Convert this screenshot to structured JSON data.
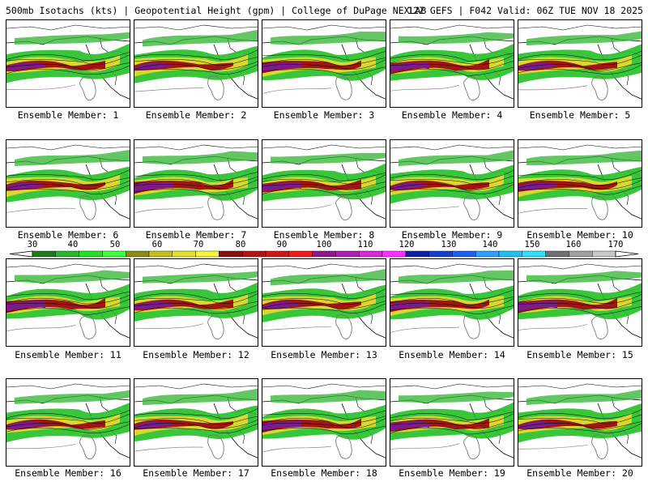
{
  "header": {
    "left": "500mb Isotachs (kts) | Geopotential Height (gpm) | College of DuPage NEXLAB",
    "right": "12Z GEFS | F042 Valid: 06Z TUE NOV 18 2025"
  },
  "panels": [
    {
      "label": "Ensemble Member: 1"
    },
    {
      "label": "Ensemble Member: 2"
    },
    {
      "label": "Ensemble Member: 3"
    },
    {
      "label": "Ensemble Member: 4"
    },
    {
      "label": "Ensemble Member: 5"
    },
    {
      "label": "Ensemble Member: 6"
    },
    {
      "label": "Ensemble Member: 7"
    },
    {
      "label": "Ensemble Member: 8"
    },
    {
      "label": "Ensemble Member: 9"
    },
    {
      "label": "Ensemble Member: 10"
    },
    {
      "label": "Ensemble Member: 11"
    },
    {
      "label": "Ensemble Member: 12"
    },
    {
      "label": "Ensemble Member: 13"
    },
    {
      "label": "Ensemble Member: 14"
    },
    {
      "label": "Ensemble Member: 15"
    },
    {
      "label": "Ensemble Member: 16"
    },
    {
      "label": "Ensemble Member: 17"
    },
    {
      "label": "Ensemble Member: 18"
    },
    {
      "label": "Ensemble Member: 19"
    },
    {
      "label": "Ensemble Member: 20"
    }
  ],
  "colorbar": {
    "ticks": [
      "30",
      "40",
      "50",
      "60",
      "70",
      "80",
      "90",
      "100",
      "110",
      "120",
      "130",
      "140",
      "150",
      "160",
      "170"
    ],
    "colors": [
      "#1d7a1d",
      "#2db32d",
      "#25e025",
      "#40ff40",
      "#8c8c1a",
      "#c0c020",
      "#e0e030",
      "#f5f53a",
      "#8a1010",
      "#b01414",
      "#d01818",
      "#f01c1c",
      "#8c1a8c",
      "#b020b0",
      "#d828d8",
      "#ff30ff",
      "#1020a0",
      "#1840d0",
      "#2060f0",
      "#30a0ff",
      "#20c0f0",
      "#30e0ff",
      "#707070",
      "#a0a0a0",
      "#c8c8c8"
    ]
  }
}
